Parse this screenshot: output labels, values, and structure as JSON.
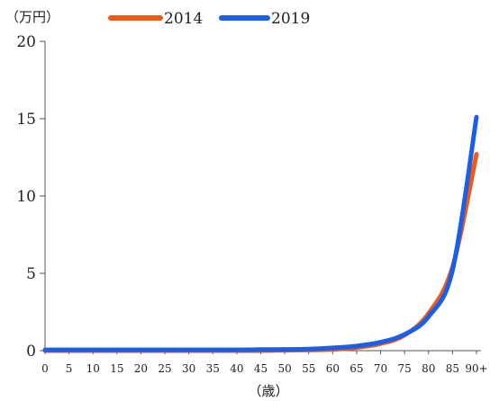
{
  "chart_data": {
    "type": "line",
    "y_unit_label": "（万円）",
    "xlabel": "（歳）",
    "ylim": [
      0,
      20
    ],
    "yticks": [
      0,
      5,
      10,
      15,
      20
    ],
    "categories": [
      "0",
      "5",
      "10",
      "15",
      "20",
      "25",
      "30",
      "35",
      "40",
      "45",
      "50",
      "55",
      "60",
      "65",
      "70",
      "75",
      "80",
      "85",
      "90+"
    ],
    "series": [
      {
        "name": "2014",
        "color": "#f05a14",
        "values": [
          0.0,
          0.0,
          0.0,
          0.0,
          0.0,
          0.0,
          0.0,
          0.0,
          0.0,
          0.0,
          0.02,
          0.04,
          0.08,
          0.2,
          0.45,
          1.0,
          2.4,
          5.4,
          12.7
        ]
      },
      {
        "name": "2019",
        "color": "#1a5fe8",
        "values": [
          0.05,
          0.05,
          0.05,
          0.05,
          0.05,
          0.05,
          0.05,
          0.05,
          0.05,
          0.07,
          0.08,
          0.1,
          0.18,
          0.3,
          0.55,
          1.05,
          2.2,
          5.2,
          15.1
        ]
      }
    ],
    "legend_position": "top"
  }
}
